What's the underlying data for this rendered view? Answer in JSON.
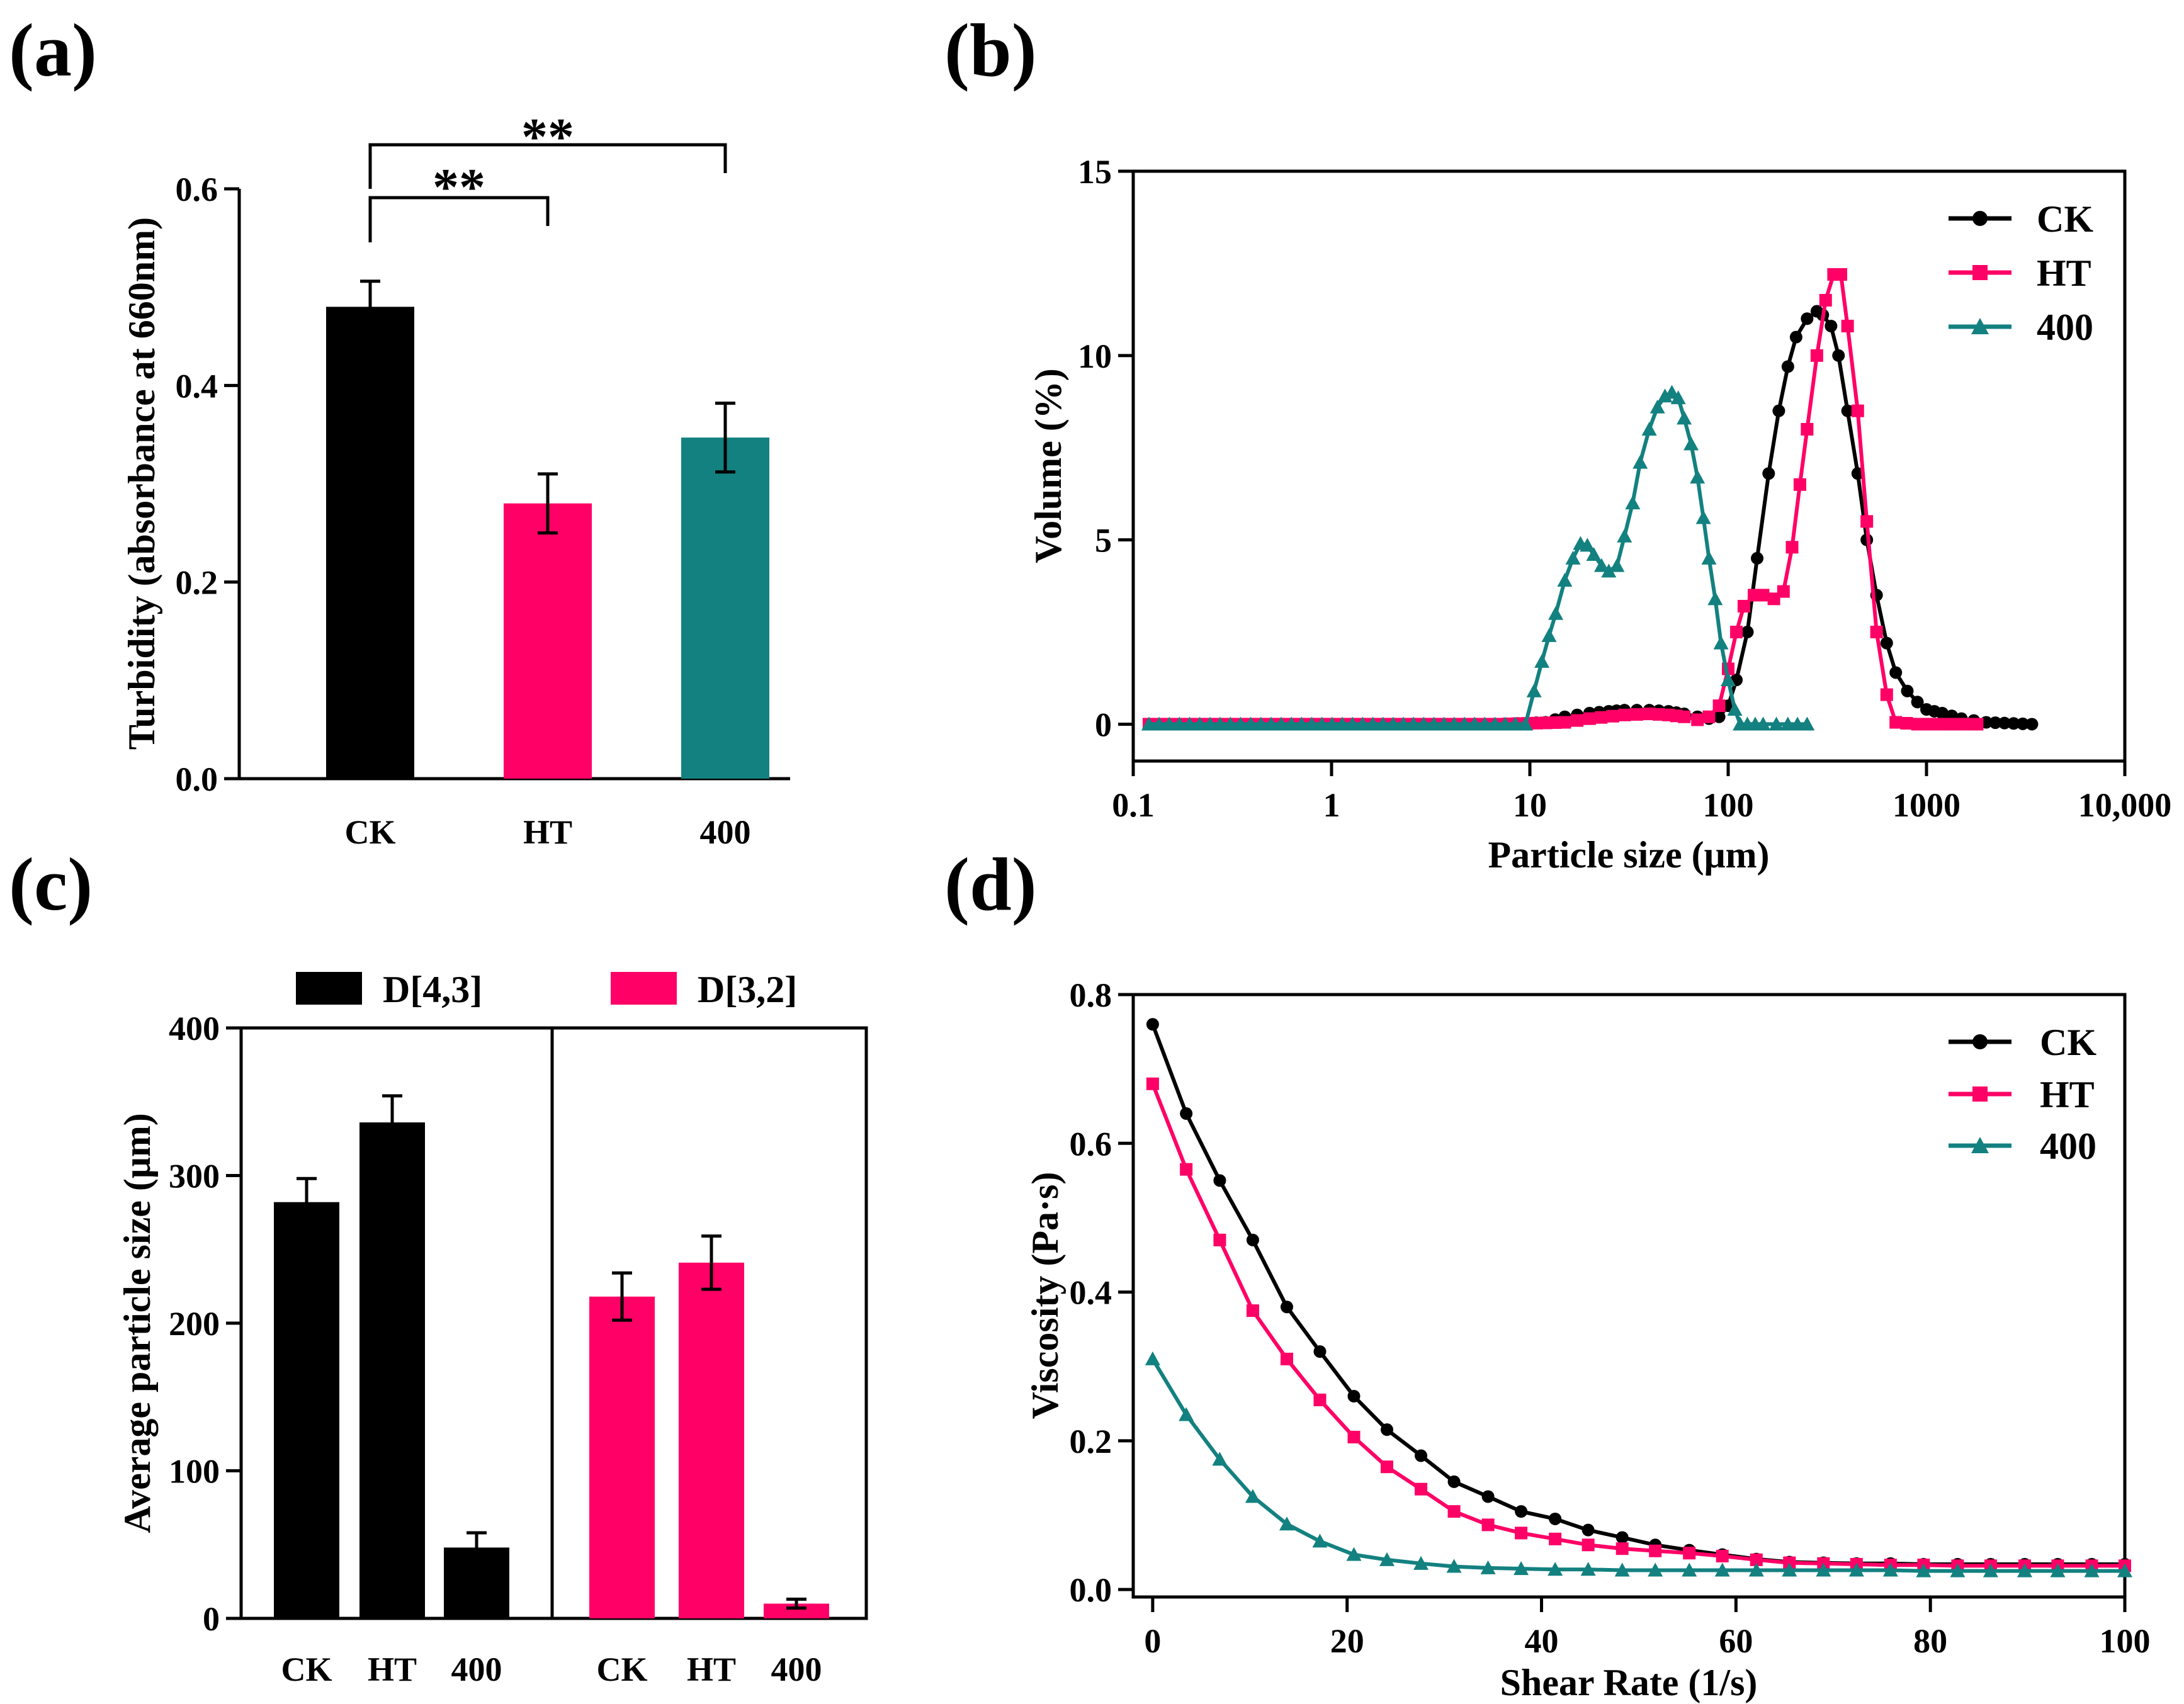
{
  "colors": {
    "CK": "#000000",
    "HT": "#ff0066",
    "400": "#138180"
  },
  "chart_data": [
    {
      "panel": "(a)",
      "type": "bar",
      "categories": [
        "CK",
        "HT",
        "400"
      ],
      "values": [
        0.48,
        0.28,
        0.347
      ],
      "errors": [
        0.026,
        0.03,
        0.035
      ],
      "xlabel": "",
      "ylabel": "Turbidity (absorbance at 660nm)",
      "ylim": [
        0,
        0.6
      ],
      "yticks": [
        "0.0",
        "0.2",
        "0.4",
        "0.6"
      ],
      "annotations": [
        {
          "from": "CK",
          "to": "HT",
          "text": "**"
        },
        {
          "from": "CK",
          "to": "400",
          "text": "**"
        }
      ]
    },
    {
      "panel": "(b)",
      "type": "line",
      "xscale": "log",
      "xlabel": "Particle size (μm)",
      "ylabel": "Volume (%)",
      "xlim": [
        0.1,
        10000
      ],
      "ylim": [
        -1,
        15
      ],
      "xticks": [
        "0.1",
        "1",
        "10",
        "100",
        "1000",
        "10,000"
      ],
      "yticks": [
        "0",
        "5",
        "10",
        "15"
      ],
      "legend": [
        "CK",
        "HT",
        "400"
      ],
      "series": [
        {
          "name": "CK",
          "x": [
            0.12,
            7,
            12,
            15,
            20,
            25,
            30,
            40,
            50,
            60,
            70,
            80,
            90,
            100,
            110,
            125,
            140,
            160,
            180,
            200,
            220,
            250,
            280,
            300,
            330,
            360,
            400,
            450,
            500,
            560,
            630,
            700,
            800,
            900,
            1000,
            1200,
            1500,
            2000,
            3400
          ],
          "y": [
            0,
            0,
            0.05,
            0.2,
            0.3,
            0.35,
            0.38,
            0.38,
            0.35,
            0.28,
            0.2,
            0.15,
            0.2,
            0.5,
            1.2,
            2.5,
            4.5,
            6.8,
            8.5,
            9.7,
            10.5,
            11.0,
            11.2,
            11.1,
            10.8,
            10.0,
            8.5,
            6.8,
            5.0,
            3.5,
            2.2,
            1.4,
            0.9,
            0.6,
            0.4,
            0.3,
            0.15,
            0.05,
            0
          ]
        },
        {
          "name": "HT",
          "x": [
            0.12,
            7,
            15,
            20,
            30,
            40,
            50,
            60,
            70,
            80,
            90,
            100,
            110,
            120,
            135,
            150,
            170,
            190,
            210,
            230,
            250,
            280,
            310,
            340,
            370,
            400,
            450,
            500,
            560,
            630,
            700,
            900,
            1200,
            1800
          ],
          "y": [
            0,
            0,
            0.05,
            0.15,
            0.25,
            0.28,
            0.25,
            0.2,
            0.12,
            0.2,
            0.5,
            1.5,
            2.5,
            3.2,
            3.5,
            3.5,
            3.4,
            3.6,
            4.8,
            6.5,
            8.0,
            10.0,
            11.5,
            12.2,
            12.2,
            10.8,
            8.5,
            5.5,
            2.5,
            0.8,
            0.05,
            0,
            0,
            0
          ]
        },
        {
          "name": "400",
          "x": [
            0.12,
            9.5,
            10.5,
            11.5,
            12.5,
            13.5,
            15,
            16.5,
            18,
            19.5,
            21,
            23,
            25,
            27.5,
            30,
            33,
            36,
            40,
            44,
            48,
            52,
            56,
            60,
            65,
            70,
            75,
            80,
            86,
            92,
            100,
            108,
            115,
            125,
            150,
            175,
            200,
            250
          ],
          "y": [
            0,
            0,
            0.9,
            1.7,
            2.4,
            3.0,
            3.9,
            4.5,
            4.9,
            4.85,
            4.6,
            4.3,
            4.15,
            4.3,
            5.1,
            6.0,
            7.1,
            8.0,
            8.6,
            8.9,
            9.0,
            8.85,
            8.3,
            7.6,
            6.7,
            5.6,
            4.5,
            3.4,
            2.2,
            1.2,
            0.4,
            0,
            0,
            0,
            0,
            0,
            0
          ]
        }
      ]
    },
    {
      "panel": "(c)",
      "type": "bar",
      "ylabel": "Average particle size (μm)",
      "ylim": [
        0,
        400
      ],
      "yticks": [
        "0",
        "100",
        "200",
        "300",
        "400"
      ],
      "categories": [
        "CK",
        "HT",
        "400"
      ],
      "legend": [
        "D[4,3]",
        "D[3,2]"
      ],
      "series": [
        {
          "name": "D[4,3]",
          "values": [
            282,
            336,
            48
          ],
          "errors": [
            16,
            18,
            10
          ]
        },
        {
          "name": "D[3,2]",
          "values": [
            218,
            241,
            10
          ],
          "errors": [
            16,
            18,
            3
          ]
        }
      ]
    },
    {
      "panel": "(d)",
      "type": "line",
      "xlabel": "Shear Rate (1/s)",
      "ylabel": "Viscosity (Pa·s)",
      "xlim": [
        -2,
        100
      ],
      "ylim": [
        -0.01,
        0.8
      ],
      "xticks": [
        "0",
        "20",
        "40",
        "60",
        "80",
        "100"
      ],
      "yticks": [
        "0.0",
        "0.2",
        "0.4",
        "0.6",
        "0.8"
      ],
      "legend": [
        "CK",
        "HT",
        "400"
      ],
      "x": [
        0,
        3.45,
        6.9,
        10.3,
        13.8,
        17.2,
        20.7,
        24.1,
        27.6,
        31,
        34.5,
        37.9,
        41.4,
        44.8,
        48.3,
        51.7,
        55.2,
        58.6,
        62.1,
        65.5,
        69,
        72.4,
        75.9,
        79.3,
        82.8,
        86.2,
        89.7,
        93.1,
        96.6,
        100
      ],
      "series": [
        {
          "name": "CK",
          "values": [
            0.76,
            0.64,
            0.55,
            0.47,
            0.38,
            0.32,
            0.26,
            0.215,
            0.18,
            0.145,
            0.125,
            0.105,
            0.095,
            0.08,
            0.07,
            0.06,
            0.053,
            0.047,
            0.041,
            0.037,
            0.036,
            0.035,
            0.035,
            0.034,
            0.034,
            0.034,
            0.034,
            0.034,
            0.034,
            0.034
          ]
        },
        {
          "name": "HT",
          "values": [
            0.68,
            0.565,
            0.47,
            0.375,
            0.31,
            0.255,
            0.205,
            0.165,
            0.135,
            0.105,
            0.087,
            0.076,
            0.068,
            0.06,
            0.055,
            0.052,
            0.049,
            0.045,
            0.04,
            0.036,
            0.035,
            0.034,
            0.033,
            0.033,
            0.032,
            0.032,
            0.032,
            0.032,
            0.032,
            0.032
          ]
        },
        {
          "name": "400",
          "values": [
            0.31,
            0.235,
            0.175,
            0.125,
            0.088,
            0.065,
            0.047,
            0.04,
            0.035,
            0.031,
            0.029,
            0.028,
            0.027,
            0.027,
            0.026,
            0.026,
            0.026,
            0.026,
            0.026,
            0.026,
            0.026,
            0.026,
            0.026,
            0.025,
            0.025,
            0.025,
            0.025,
            0.025,
            0.025,
            0.025
          ]
        }
      ]
    }
  ]
}
